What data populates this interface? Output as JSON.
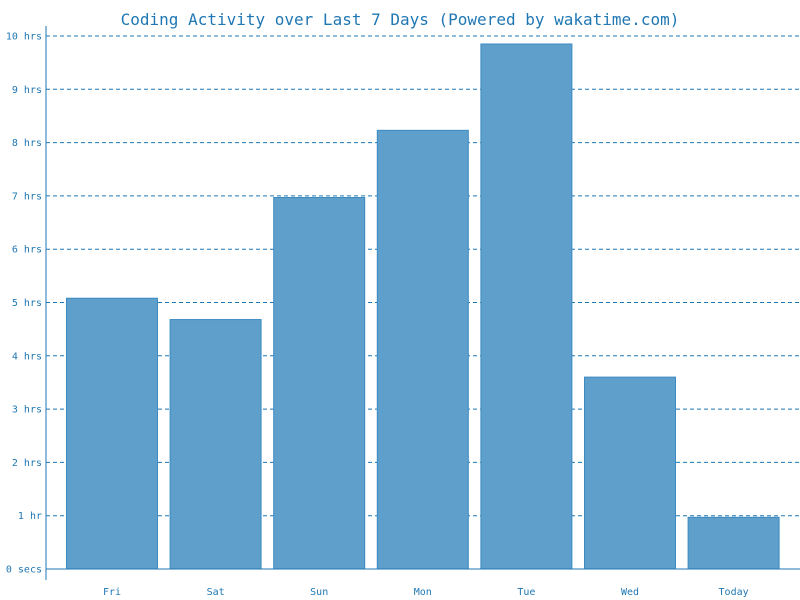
{
  "chart_data": {
    "type": "bar",
    "title": "Coding Activity over Last 7 Days (Powered by wakatime.com)",
    "categories": [
      "Fri",
      "Sat",
      "Sun",
      "Mon",
      "Tue",
      "Wed",
      "Today"
    ],
    "values": [
      5.08,
      4.68,
      6.97,
      8.23,
      9.85,
      3.6,
      0.97
    ],
    "unit": "hrs",
    "xlabel": "",
    "ylabel": "",
    "ylim": [
      0,
      10
    ],
    "yticks": [
      0,
      1,
      2,
      3,
      4,
      5,
      6,
      7,
      8,
      9,
      10
    ],
    "ytick_labels": [
      "0 secs",
      "1 hr",
      "2 hrs",
      "3 hrs",
      "4 hrs",
      "5 hrs",
      "6 hrs",
      "7 hrs",
      "8 hrs",
      "9 hrs",
      "10 hrs"
    ],
    "grid": true,
    "grid_style": "dashed",
    "bar_color": "#5f9fcc",
    "bar_border_color": "#3b8bc2",
    "accent_color": "#1f77b4"
  }
}
